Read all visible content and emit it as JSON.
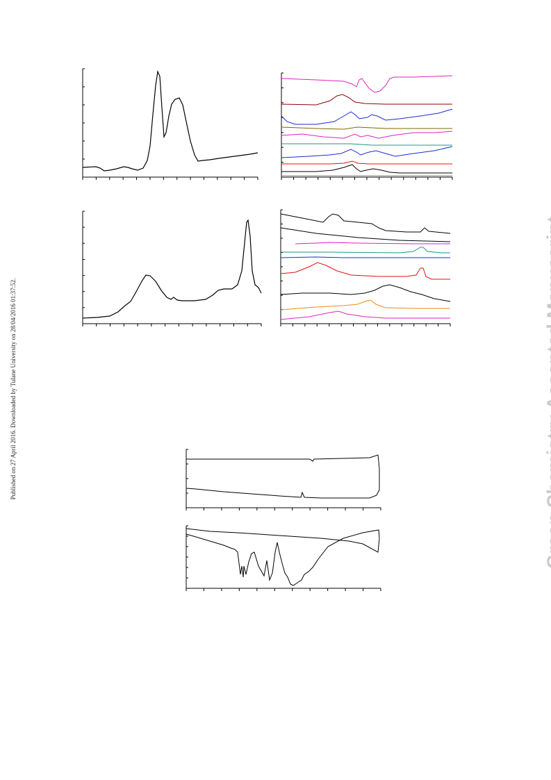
{
  "side_note": "Published on 27 April 2016. Downloaded by Tulane University on 28/04/2016 01:37:52.",
  "watermark": "Green Chemistry Accepted Manuscript",
  "colors": {
    "black": "#000000",
    "magenta": "#e020c0",
    "dark_red": "#8b0000",
    "blue": "#1a2ad0",
    "olive": "#7a6a00",
    "teal": "#1a9a8a",
    "red": "#e01010",
    "orange": "#f08a10",
    "grey": "#888888",
    "watermark": "#c9c9c9"
  },
  "chart_data": [
    {
      "type": "line",
      "panel": "top-left",
      "series_count": 1,
      "x_ticks": 14,
      "y_ticks": 7
    },
    {
      "type": "line",
      "panel": "top-right",
      "series_count": 9,
      "x_ticks": 15,
      "y_ticks": 8,
      "stacked": true
    },
    {
      "type": "line",
      "panel": "middle-left",
      "series_count": 1,
      "x_ticks": 14,
      "y_ticks": 8
    },
    {
      "type": "line",
      "panel": "middle-right",
      "series_count": 9,
      "x_ticks": 15,
      "y_ticks": 9,
      "stacked": true
    },
    {
      "type": "line",
      "panel": "bottom-upper",
      "series_count": 1,
      "x_ticks": 12,
      "y_ticks": 5,
      "hysteresis": true
    },
    {
      "type": "line",
      "panel": "bottom-lower",
      "series_count": 1,
      "x_ticks": 12,
      "y_ticks": 7,
      "hysteresis": true
    }
  ]
}
